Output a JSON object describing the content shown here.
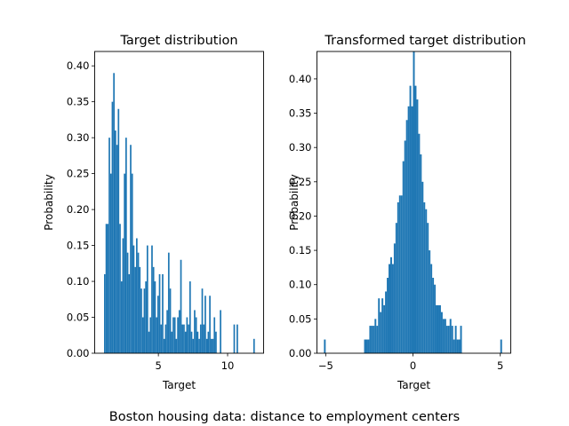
{
  "suptitle": "Boston housing data: distance to employment centers",
  "chart_data": [
    {
      "type": "bar",
      "title": "Target distribution",
      "xlabel": "Target",
      "ylabel": "Probability",
      "xlim": [
        0.4,
        12.6
      ],
      "ylim": [
        0,
        0.42
      ],
      "xticks": [
        5,
        10
      ],
      "xtick_labels": [
        "5",
        "10"
      ],
      "yticks": [
        0,
        0.05,
        0.1,
        0.15,
        0.2,
        0.25,
        0.3,
        0.35,
        0.4
      ],
      "ytick_labels": [
        "0.00",
        "0.05",
        "0.10",
        "0.15",
        "0.20",
        "0.25",
        "0.30",
        "0.35",
        "0.40"
      ],
      "bin_width": 0.11,
      "x": [
        1.13,
        1.24,
        1.35,
        1.46,
        1.57,
        1.68,
        1.79,
        1.9,
        2.01,
        2.12,
        2.23,
        2.34,
        2.45,
        2.56,
        2.67,
        2.78,
        2.89,
        3.0,
        3.11,
        3.22,
        3.33,
        3.44,
        3.55,
        3.66,
        3.77,
        3.88,
        3.99,
        4.1,
        4.21,
        4.32,
        4.43,
        4.54,
        4.65,
        4.76,
        4.87,
        4.98,
        5.09,
        5.2,
        5.31,
        5.42,
        5.53,
        5.64,
        5.75,
        5.86,
        5.97,
        6.08,
        6.19,
        6.3,
        6.41,
        6.52,
        6.63,
        6.74,
        6.85,
        6.96,
        7.07,
        7.18,
        7.29,
        7.4,
        7.51,
        7.62,
        7.73,
        7.84,
        7.95,
        8.06,
        8.17,
        8.28,
        8.39,
        8.5,
        8.61,
        8.72,
        8.83,
        8.94,
        9.05,
        9.16,
        9.49,
        10.48,
        10.7,
        11.91
      ],
      "values": [
        0.11,
        0.18,
        0.18,
        0.3,
        0.25,
        0.35,
        0.39,
        0.31,
        0.29,
        0.34,
        0.18,
        0.1,
        0.16,
        0.25,
        0.3,
        0.14,
        0.11,
        0.29,
        0.25,
        0.15,
        0.12,
        0.16,
        0.14,
        0.12,
        0.09,
        0.05,
        0.09,
        0.1,
        0.15,
        0.03,
        0.05,
        0.15,
        0.12,
        0.1,
        0.05,
        0.08,
        0.11,
        0.04,
        0.11,
        0.02,
        0.04,
        0.06,
        0.14,
        0.09,
        0.03,
        0.05,
        0.05,
        0.02,
        0.05,
        0.06,
        0.13,
        0.04,
        0.04,
        0.03,
        0.05,
        0.04,
        0.1,
        0.03,
        0.02,
        0.06,
        0.05,
        0.03,
        0.02,
        0.04,
        0.09,
        0.04,
        0.08,
        0.02,
        0.03,
        0.08,
        0.02,
        0.02,
        0.05,
        0.03,
        0.06,
        0.04,
        0.04,
        0.02
      ]
    },
    {
      "type": "bar",
      "title": "Transformed target distribution",
      "xlabel": "Target",
      "ylabel": "Probability",
      "xlim": [
        -5.5,
        5.6
      ],
      "ylim": [
        0,
        0.44
      ],
      "xticks": [
        -5,
        0,
        5
      ],
      "xtick_labels": [
        "−5",
        "0",
        "5"
      ],
      "yticks": [
        0,
        0.05,
        0.1,
        0.15,
        0.2,
        0.25,
        0.3,
        0.35,
        0.4
      ],
      "ytick_labels": [
        "0.00",
        "0.05",
        "0.10",
        "0.15",
        "0.20",
        "0.25",
        "0.30",
        "0.35",
        "0.40"
      ],
      "bin_width": 0.1,
      "x": [
        -5.05,
        -2.75,
        -2.65,
        -2.55,
        -2.45,
        -2.35,
        -2.25,
        -2.15,
        -2.05,
        -1.95,
        -1.85,
        -1.75,
        -1.65,
        -1.55,
        -1.45,
        -1.35,
        -1.25,
        -1.15,
        -1.05,
        -0.95,
        -0.85,
        -0.75,
        -0.65,
        -0.55,
        -0.45,
        -0.35,
        -0.25,
        -0.15,
        -0.05,
        0.05,
        0.15,
        0.25,
        0.35,
        0.45,
        0.55,
        0.65,
        0.75,
        0.85,
        0.95,
        1.05,
        1.15,
        1.25,
        1.35,
        1.45,
        1.55,
        1.65,
        1.75,
        1.85,
        1.95,
        2.05,
        2.15,
        2.25,
        2.35,
        2.45,
        2.55,
        2.65,
        2.75,
        5.05
      ],
      "values": [
        0.02,
        0.02,
        0.02,
        0.02,
        0.04,
        0.04,
        0.04,
        0.05,
        0.04,
        0.08,
        0.06,
        0.08,
        0.07,
        0.09,
        0.11,
        0.13,
        0.14,
        0.13,
        0.16,
        0.19,
        0.22,
        0.23,
        0.23,
        0.28,
        0.31,
        0.34,
        0.36,
        0.39,
        0.36,
        0.44,
        0.39,
        0.37,
        0.32,
        0.29,
        0.25,
        0.22,
        0.21,
        0.19,
        0.15,
        0.13,
        0.11,
        0.1,
        0.07,
        0.07,
        0.07,
        0.06,
        0.05,
        0.05,
        0.04,
        0.04,
        0.05,
        0.04,
        0.02,
        0.04,
        0.02,
        0.02,
        0.04,
        0.02
      ]
    }
  ],
  "colors": {
    "bar": "#1f77b4",
    "axis": "#000000"
  }
}
